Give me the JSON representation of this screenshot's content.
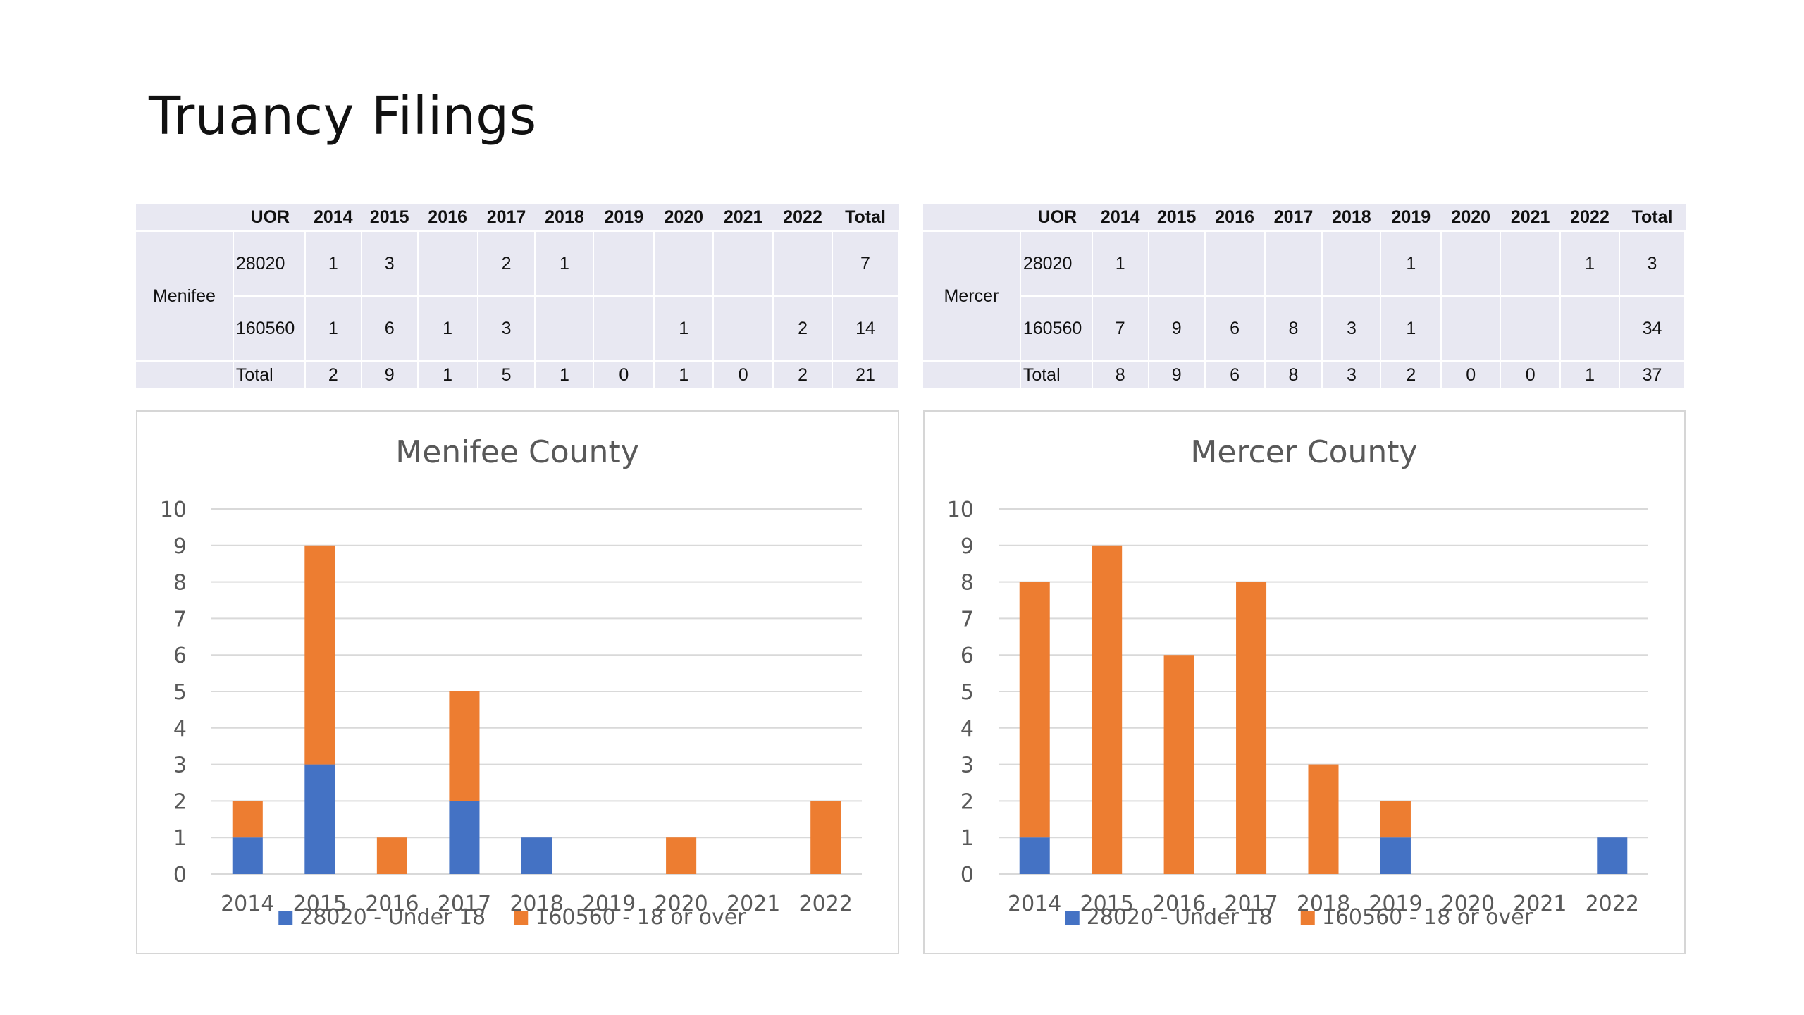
{
  "title": "Truancy Filings",
  "colors": {
    "under18": "#4472c4",
    "over18": "#ed7d31",
    "grid": "#d9d9d9",
    "axis_text": "#595959"
  },
  "tables": [
    {
      "county": "Menifee",
      "headers": [
        "UOR",
        "2014",
        "2015",
        "2016",
        "2017",
        "2018",
        "2019",
        "2020",
        "2021",
        "2022",
        "Total"
      ],
      "rows": [
        {
          "uor": "28020",
          "values": [
            "1",
            "3",
            "",
            "2",
            "1",
            "",
            "",
            "",
            "",
            "7"
          ]
        },
        {
          "uor": "160560",
          "values": [
            "1",
            "6",
            "1",
            "3",
            "",
            "",
            "1",
            "",
            "2",
            "14"
          ]
        },
        {
          "uor": "Total",
          "values": [
            "2",
            "9",
            "1",
            "5",
            "1",
            "0",
            "1",
            "0",
            "2",
            "21"
          ]
        }
      ]
    },
    {
      "county": "Mercer",
      "headers": [
        "UOR",
        "2014",
        "2015",
        "2016",
        "2017",
        "2018",
        "2019",
        "2020",
        "2021",
        "2022",
        "Total"
      ],
      "rows": [
        {
          "uor": "28020",
          "values": [
            "1",
            "",
            "",
            "",
            "",
            "1",
            "",
            "",
            "1",
            "3"
          ]
        },
        {
          "uor": "160560",
          "values": [
            "7",
            "9",
            "6",
            "8",
            "3",
            "1",
            "",
            "",
            "",
            "34"
          ]
        },
        {
          "uor": "Total",
          "values": [
            "8",
            "9",
            "6",
            "8",
            "3",
            "2",
            "0",
            "0",
            "1",
            "37"
          ]
        }
      ]
    }
  ],
  "chart_data": [
    {
      "type": "bar",
      "stacked": true,
      "title": "Menifee County",
      "categories": [
        "2014",
        "2015",
        "2016",
        "2017",
        "2018",
        "2019",
        "2020",
        "2021",
        "2022"
      ],
      "series": [
        {
          "name": "28020 - Under 18",
          "color": "#4472c4",
          "values": [
            1,
            3,
            0,
            2,
            1,
            0,
            0,
            0,
            0
          ]
        },
        {
          "name": "160560 - 18 or over",
          "color": "#ed7d31",
          "values": [
            1,
            6,
            1,
            3,
            0,
            0,
            1,
            0,
            2
          ]
        }
      ],
      "ylim": [
        0,
        10
      ],
      "yticks": [
        "0",
        "1",
        "2",
        "3",
        "4",
        "5",
        "6",
        "7",
        "8",
        "9",
        "10"
      ],
      "grid": true,
      "legend": "bottom"
    },
    {
      "type": "bar",
      "stacked": true,
      "title": "Mercer County",
      "categories": [
        "2014",
        "2015",
        "2016",
        "2017",
        "2018",
        "2019",
        "2020",
        "2021",
        "2022"
      ],
      "series": [
        {
          "name": "28020 - Under 18",
          "color": "#4472c4",
          "values": [
            1,
            0,
            0,
            0,
            0,
            1,
            0,
            0,
            1
          ]
        },
        {
          "name": "160560 - 18 or over",
          "color": "#ed7d31",
          "values": [
            7,
            9,
            6,
            8,
            3,
            1,
            0,
            0,
            0
          ]
        }
      ],
      "ylim": [
        0,
        10
      ],
      "yticks": [
        "0",
        "1",
        "2",
        "3",
        "4",
        "5",
        "6",
        "7",
        "8",
        "9",
        "10"
      ],
      "grid": true,
      "legend": "bottom"
    }
  ]
}
